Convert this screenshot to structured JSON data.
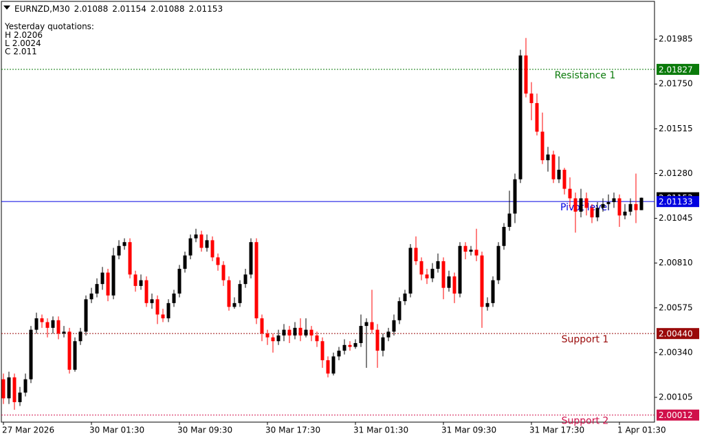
{
  "chart_data": {
    "type": "candlestick",
    "title": "EURNZD,M30",
    "up_color": "#000000",
    "down_color": "#ff0000",
    "grid": false,
    "ylim": [
      1.99975,
      2.02184
    ],
    "yticks": [
      2.00105,
      {
        "value": 2.0034,
        "label": "2.00340"
      },
      2.00575,
      {
        "value": 2.0081,
        "label": "2.00810"
      },
      2.01045,
      {
        "value": 2.0128,
        "label": "2.01280"
      },
      2.01515,
      {
        "value": 2.0175,
        "label": "2.01750"
      },
      2.01985
    ],
    "categories": [
      "27 Mar 2026",
      null,
      null,
      null,
      null,
      null,
      null,
      null,
      null,
      null,
      null,
      null,
      null,
      null,
      null,
      null,
      "30 Mar 01:30",
      null,
      null,
      null,
      null,
      null,
      null,
      null,
      null,
      null,
      null,
      null,
      null,
      null,
      null,
      null,
      "30 Mar 09:30",
      null,
      null,
      null,
      null,
      null,
      null,
      null,
      null,
      null,
      null,
      null,
      null,
      null,
      null,
      null,
      "30 Mar 17:30",
      null,
      null,
      null,
      null,
      null,
      null,
      null,
      null,
      null,
      null,
      null,
      null,
      null,
      null,
      null,
      "31 Mar 01:30",
      null,
      null,
      null,
      null,
      null,
      null,
      null,
      null,
      null,
      null,
      null,
      null,
      null,
      null,
      null,
      "31 Mar 09:30",
      null,
      null,
      null,
      null,
      null,
      null,
      null,
      null,
      null,
      null,
      null,
      null,
      null,
      null,
      null,
      "31 Mar 17:30",
      null,
      null,
      null,
      null,
      null,
      null,
      null,
      null,
      null,
      null,
      null,
      null,
      null,
      null,
      null,
      "1 Apr 01:30",
      null,
      null,
      null,
      null
    ],
    "open": [
      2.002,
      2.001,
      2.0021,
      2.0008,
      2.0013,
      2.002,
      2.0046,
      2.0052,
      2.005,
      2.0047,
      2.0051,
      2.0044,
      2.0045,
      2.0025,
      2.004,
      2.0045,
      2.0062,
      2.0065,
      2.007,
      2.0076,
      2.0064,
      2.0085,
      2.009,
      2.0092,
      2.0075,
      2.0069,
      2.0072,
      2.006,
      2.0062,
      2.0054,
      2.0052,
      2.006,
      2.0065,
      2.0078,
      2.0085,
      2.0094,
      2.0096,
      2.0089,
      2.0093,
      2.0084,
      2.008,
      2.0072,
      2.0058,
      2.006,
      2.007,
      2.0075,
      2.0092,
      2.0052,
      2.0044,
      2.0042,
      2.004,
      2.0043,
      2.0046,
      2.0043,
      2.0047,
      2.0043,
      2.0046,
      2.0043,
      2.004,
      2.003,
      2.0023,
      2.0032,
      2.0035,
      2.0038,
      2.0037,
      2.0039,
      2.0048,
      2.005,
      2.0046,
      2.0035,
      2.0042,
      2.0045,
      2.0051,
      2.0061,
      2.0065,
      2.0089,
      2.0082,
      2.0075,
      2.0073,
      2.0078,
      2.0082,
      2.0068,
      2.0074,
      2.0065,
      2.009,
      2.0087,
      2.0088,
      2.0085,
      2.0058,
      2.006,
      2.0072,
      2.009,
      2.01,
      2.0107,
      2.0125,
      2.019,
      2.017,
      2.0165,
      2.015,
      2.0135,
      2.0138,
      2.0125,
      2.013,
      2.012,
      2.0115,
      2.0108,
      2.0115,
      2.011,
      2.0105,
      2.011,
      2.0112,
      2.0113,
      2.0115,
      2.0106,
      2.0108,
      2.0112,
      2.01088
    ],
    "high": [
      2.0023,
      2.0024,
      2.0023,
      2.0016,
      2.0023,
      2.0048,
      2.0055,
      2.0054,
      2.0052,
      2.0053,
      2.0053,
      2.0048,
      2.0047,
      2.0042,
      2.0047,
      2.0064,
      2.0068,
      2.0073,
      2.0079,
      2.0078,
      2.0089,
      2.0093,
      2.0094,
      2.0094,
      2.0077,
      2.0075,
      2.0074,
      2.0065,
      2.0064,
      2.0057,
      2.0062,
      2.0067,
      2.008,
      2.0087,
      2.0096,
      2.0099,
      2.0098,
      2.0096,
      2.0095,
      2.0086,
      2.0082,
      2.0074,
      2.0063,
      2.0072,
      2.0078,
      2.0094,
      2.0094,
      2.0054,
      2.0046,
      2.0044,
      2.0046,
      2.0049,
      2.0048,
      2.005,
      2.0052,
      2.0052,
      2.0048,
      2.0045,
      2.0042,
      2.0032,
      2.0034,
      2.0037,
      2.0041,
      2.004,
      2.0041,
      2.0054,
      2.0052,
      2.0067,
      2.0049,
      2.0044,
      2.0047,
      2.0054,
      2.0063,
      2.0067,
      2.0091,
      2.0095,
      2.0084,
      2.0078,
      2.0081,
      2.0086,
      2.0084,
      2.0077,
      2.0076,
      2.0092,
      2.0092,
      2.009,
      2.0099,
      2.0087,
      2.0063,
      2.0074,
      2.0092,
      2.0102,
      2.0119,
      2.0128,
      2.0193,
      2.01992,
      2.0176,
      2.017,
      2.016,
      2.0142,
      2.014,
      2.0137,
      2.0131,
      2.0126,
      2.0118,
      2.012,
      2.0118,
      2.0112,
      2.0113,
      2.0115,
      2.0117,
      2.0118,
      2.0117,
      2.0112,
      2.0115,
      2.0128,
      2.01154
    ],
    "low": [
      2.0007,
      2.0007,
      2.0004,
      2.0006,
      2.0011,
      2.0018,
      2.0044,
      2.0047,
      2.0042,
      2.0044,
      2.0041,
      2.0042,
      2.0023,
      2.0024,
      2.0038,
      2.0043,
      2.006,
      2.0063,
      2.0067,
      2.0061,
      2.0062,
      2.0083,
      2.0088,
      2.0073,
      2.0066,
      2.0067,
      2.0058,
      2.0057,
      2.0049,
      2.005,
      2.005,
      2.0058,
      2.0063,
      2.0076,
      2.0083,
      2.0092,
      2.0087,
      2.0087,
      2.0082,
      2.0077,
      2.0069,
      2.0056,
      2.0057,
      2.0058,
      2.0068,
      2.0073,
      2.0049,
      2.004,
      2.0038,
      2.0034,
      2.0038,
      2.004,
      2.0039,
      2.0041,
      2.004,
      2.0042,
      2.004,
      2.0037,
      2.0026,
      2.0021,
      2.0022,
      2.003,
      2.0033,
      2.0035,
      2.0036,
      2.0037,
      2.0026,
      2.0044,
      2.0026,
      2.0032,
      2.004,
      2.0043,
      2.0049,
      2.0059,
      2.0063,
      2.008,
      2.0072,
      2.007,
      2.0071,
      2.0076,
      2.0062,
      2.0066,
      2.006,
      2.0063,
      2.0083,
      2.0085,
      2.0082,
      2.0047,
      2.0056,
      2.0058,
      2.007,
      2.0088,
      2.0098,
      2.0102,
      2.0123,
      2.0168,
      2.0156,
      2.0148,
      2.0133,
      2.0129,
      2.0123,
      2.0123,
      2.0117,
      2.011,
      2.0097,
      2.0105,
      2.0106,
      2.0102,
      2.0103,
      2.0108,
      2.0109,
      2.011,
      2.01,
      2.0104,
      2.0106,
      2.0102,
      2.01088
    ],
    "close": [
      2.001,
      2.0021,
      2.0008,
      2.0013,
      2.002,
      2.0046,
      2.0052,
      2.005,
      2.0047,
      2.0051,
      2.0044,
      2.0045,
      2.0025,
      2.004,
      2.0045,
      2.0062,
      2.0065,
      2.007,
      2.0076,
      2.0064,
      2.0085,
      2.009,
      2.0092,
      2.0075,
      2.0069,
      2.0072,
      2.006,
      2.0062,
      2.0054,
      2.0052,
      2.006,
      2.0065,
      2.0078,
      2.0085,
      2.0094,
      2.0096,
      2.0089,
      2.0093,
      2.0084,
      2.008,
      2.0072,
      2.0058,
      2.006,
      2.007,
      2.0075,
      2.0092,
      2.0052,
      2.0044,
      2.0042,
      2.004,
      2.0043,
      2.0046,
      2.0043,
      2.0047,
      2.0043,
      2.0046,
      2.0043,
      2.004,
      2.003,
      2.0023,
      2.0032,
      2.0035,
      2.0038,
      2.0037,
      2.0039,
      2.0048,
      2.005,
      2.0046,
      2.0035,
      2.0042,
      2.0045,
      2.0051,
      2.0061,
      2.0065,
      2.0089,
      2.0082,
      2.0075,
      2.0073,
      2.0078,
      2.0082,
      2.0068,
      2.0074,
      2.0065,
      2.009,
      2.0087,
      2.0088,
      2.0085,
      2.0058,
      2.006,
      2.0072,
      2.009,
      2.01,
      2.0107,
      2.0125,
      2.019,
      2.017,
      2.0165,
      2.015,
      2.0135,
      2.0138,
      2.0125,
      2.013,
      2.012,
      2.0115,
      2.0108,
      2.0115,
      2.011,
      2.0105,
      2.011,
      2.0112,
      2.0113,
      2.0115,
      2.0106,
      2.0108,
      2.0112,
      2.01088,
      2.01153
    ],
    "current_price": 2.01153,
    "yesterday": {
      "title": "Yesterday quotations:",
      "rows": [
        {
          "label": "H",
          "value": 2.0206
        },
        {
          "label": "L",
          "value": 2.0024
        },
        {
          "label": "C",
          "value": 2.011
        }
      ]
    },
    "levels": [
      {
        "name": "Resistance 1",
        "value": 2.01827,
        "color": "#0a7a0a",
        "style": "dotted"
      },
      {
        "name": "Pivot level",
        "value": 2.01133,
        "color": "#0000e0",
        "style": "solid"
      },
      {
        "name": "Support 1",
        "value": {
          "value": 2.0044,
          "label": "2.00440"
        },
        "color": "#9a0a0a",
        "style": "dotted"
      },
      {
        "name": "Support 2",
        "value": 2.00012,
        "color": "#d0104a",
        "style": "dotted"
      }
    ]
  }
}
